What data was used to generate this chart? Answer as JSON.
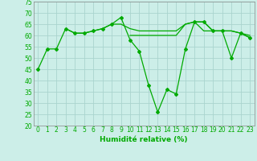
{
  "xlabel": "Humidité relative (%)",
  "background_color": "#cceee8",
  "grid_color": "#aad4ce",
  "line_color": "#00aa00",
  "x_values": [
    0,
    1,
    2,
    3,
    4,
    5,
    6,
    7,
    8,
    9,
    10,
    11,
    12,
    13,
    14,
    15,
    16,
    17,
    18,
    19,
    20,
    21,
    22,
    23
  ],
  "line1": [
    45,
    54,
    54,
    63,
    61,
    61,
    62,
    63,
    65,
    68,
    58,
    53,
    38,
    26,
    36,
    34,
    54,
    66,
    66,
    62,
    62,
    50,
    61,
    59
  ],
  "line2": [
    null,
    null,
    null,
    63,
    61,
    61,
    62,
    63,
    65,
    65,
    63,
    62,
    62,
    62,
    62,
    62,
    65,
    66,
    66,
    62,
    62,
    62,
    61,
    59
  ],
  "line3": [
    null,
    null,
    null,
    null,
    null,
    null,
    null,
    null,
    null,
    null,
    60,
    60,
    60,
    60,
    60,
    60,
    65,
    66,
    62,
    62,
    62,
    62,
    61,
    60
  ],
  "ylim": [
    20,
    75
  ],
  "xlim": [
    -0.5,
    23.5
  ],
  "yticks": [
    20,
    25,
    30,
    35,
    40,
    45,
    50,
    55,
    60,
    65,
    70,
    75
  ],
  "xticks": [
    0,
    1,
    2,
    3,
    4,
    5,
    6,
    7,
    8,
    9,
    10,
    11,
    12,
    13,
    14,
    15,
    16,
    17,
    18,
    19,
    20,
    21,
    22,
    23
  ],
  "xlabel_fontsize": 6.5,
  "tick_fontsize": 5.5,
  "marker": "D",
  "marker_size": 2.0,
  "line_width": 0.9
}
